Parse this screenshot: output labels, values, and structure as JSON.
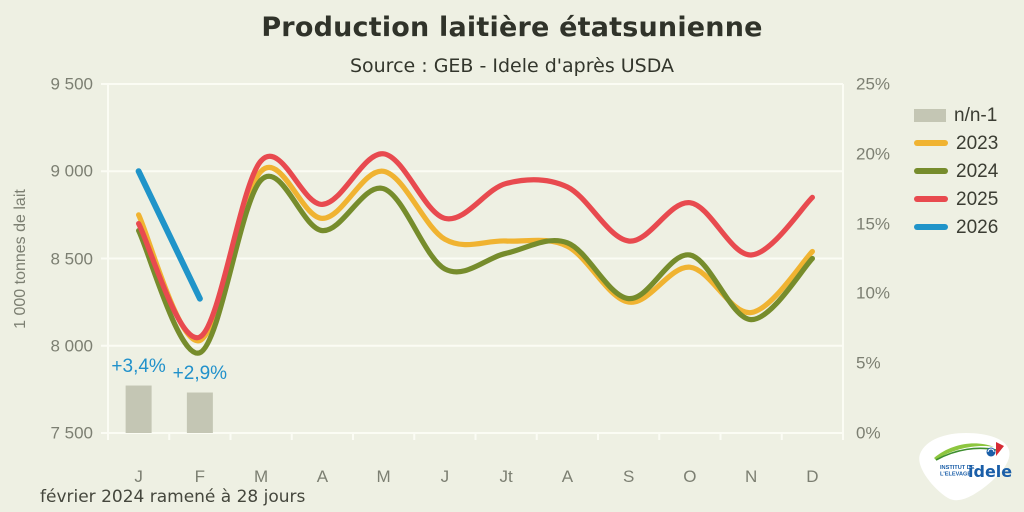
{
  "title": "Production laitière étatsunienne",
  "subtitle": "Source : GEB - Idele d'après USDA",
  "footer_note": "février 2024 ramené à 28 jours",
  "colors": {
    "background": "#eef0e3",
    "grid": "#fbfcf4",
    "bar": "#c4c6b4",
    "annotation_blue": "#2191cb",
    "axis_text": "#7c7f72"
  },
  "chart_data": {
    "type": "line+bar",
    "categories": [
      "J",
      "F",
      "M",
      "A",
      "M",
      "J",
      "Jt",
      "A",
      "S",
      "O",
      "N",
      "D"
    ],
    "left_axis": {
      "title": "1 000 tonnes de lait",
      "min": 7500,
      "max": 9500,
      "ticks": [
        {
          "value": 7500,
          "label": "7 500"
        },
        {
          "value": 8000,
          "label": "8 000"
        },
        {
          "value": 8500,
          "label": "8 500"
        },
        {
          "value": 9000,
          "label": "9 000"
        },
        {
          "value": 9500,
          "label": "9 500"
        }
      ]
    },
    "right_axis": {
      "min": 0,
      "max": 25,
      "ticks": [
        {
          "value": 0,
          "label": "0%"
        },
        {
          "value": 5,
          "label": "5%"
        },
        {
          "value": 10,
          "label": "10%"
        },
        {
          "value": 15,
          "label": "15%"
        },
        {
          "value": 20,
          "label": "20%"
        },
        {
          "value": 25,
          "label": "25%"
        }
      ]
    },
    "series": [
      {
        "name": "n/n-1",
        "type": "bar",
        "axis": "right",
        "color": "#c4c6b4",
        "values": [
          3.4,
          2.9,
          null,
          null,
          null,
          null,
          null,
          null,
          null,
          null,
          null,
          null
        ],
        "labels": [
          "+3,4%",
          "+2,9%",
          null,
          null,
          null,
          null,
          null,
          null,
          null,
          null,
          null,
          null
        ]
      },
      {
        "name": "2023",
        "type": "line",
        "axis": "left",
        "color": "#f0b331",
        "values": [
          8750,
          8030,
          9000,
          8730,
          9000,
          8610,
          8600,
          8570,
          8250,
          8450,
          8190,
          8540
        ]
      },
      {
        "name": "2024",
        "type": "line",
        "axis": "left",
        "color": "#768c2c",
        "values": [
          8660,
          7960,
          8950,
          8660,
          8900,
          8440,
          8530,
          8590,
          8270,
          8520,
          8150,
          8500
        ]
      },
      {
        "name": "2025",
        "type": "line",
        "axis": "left",
        "color": "#e84a4f",
        "values": [
          8700,
          8050,
          9060,
          8810,
          9100,
          8730,
          8930,
          8910,
          8600,
          8820,
          8520,
          8850
        ]
      },
      {
        "name": "2026",
        "type": "line",
        "axis": "left",
        "color": "#2094c9",
        "values": [
          9000,
          8270,
          null,
          null,
          null,
          null,
          null,
          null,
          null,
          null,
          null,
          null
        ]
      }
    ],
    "legend_position": "right"
  },
  "legend": {
    "items": [
      {
        "label": "n/n-1",
        "color": "#c4c6b4",
        "type": "bar"
      },
      {
        "label": "2023",
        "color": "#f0b331",
        "type": "line"
      },
      {
        "label": "2024",
        "color": "#768c2c",
        "type": "line"
      },
      {
        "label": "2025",
        "color": "#e84a4f",
        "type": "line"
      },
      {
        "label": "2026",
        "color": "#2094c9",
        "type": "line"
      }
    ]
  },
  "logo": {
    "org_line1": "INSTITUT DE",
    "org_line2": "L'ELEVAGE",
    "brand": "idele"
  }
}
